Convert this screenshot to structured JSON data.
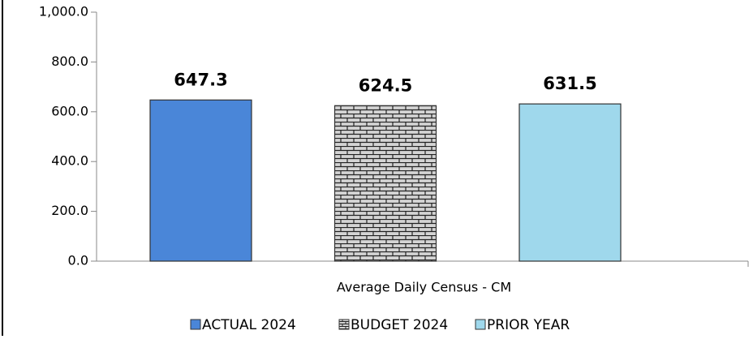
{
  "chart_data": {
    "type": "bar",
    "categories": [
      "Average Daily Census - CM"
    ],
    "series": [
      {
        "name": "ACTUAL 2024",
        "color": "#4a86d8",
        "values": [
          647.3
        ]
      },
      {
        "name": "BUDGET 2024",
        "color": "#d4d4d4",
        "pattern": "brick",
        "values": [
          624.5
        ]
      },
      {
        "name": "PRIOR YEAR",
        "color": "#9fd8ec",
        "values": [
          631.5
        ]
      }
    ],
    "ylim": [
      0,
      1000
    ],
    "yticks": [
      {
        "value": 0,
        "label": "0.0"
      },
      {
        "value": 200,
        "label": "200.0"
      },
      {
        "value": 400,
        "label": "400.0"
      },
      {
        "value": 600,
        "label": "600.0"
      },
      {
        "value": 800,
        "label": "800.0"
      },
      {
        "value": 1000,
        "label": "1,000.0"
      }
    ],
    "grid": false,
    "legend": "bottom"
  }
}
